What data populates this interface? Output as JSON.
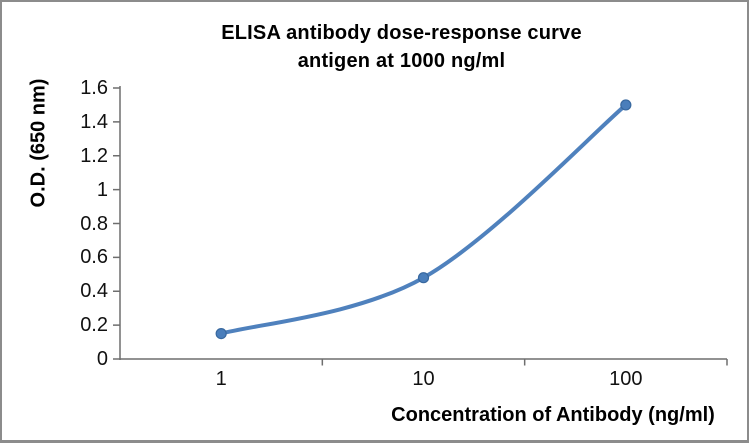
{
  "chart_data": {
    "type": "line",
    "title": "ELISA antibody dose-response curve",
    "subtitle": "antigen at 1000 ng/ml",
    "xlabel": "Concentration of Antibody (ng/ml)",
    "ylabel": "O.D. (650 nm)",
    "x_scale": "log-categories",
    "categories": [
      "1",
      "10",
      "100"
    ],
    "values": [
      0.15,
      0.48,
      1.5
    ],
    "ylim": [
      0,
      1.6
    ],
    "ytick_step": 0.2,
    "ytick_labels": [
      "0",
      "0.2",
      "0.4",
      "0.6",
      "0.8",
      "1",
      "1.2",
      "1.4",
      "1.6"
    ],
    "grid": false,
    "legend": "none",
    "line_color": "#4f81bd",
    "marker_color": "#4a7ebb",
    "marker_edge_color": "#38689f",
    "axis_color": "#6e6e6e",
    "border_color": "#8c8c8c",
    "text_color": "#000000"
  }
}
